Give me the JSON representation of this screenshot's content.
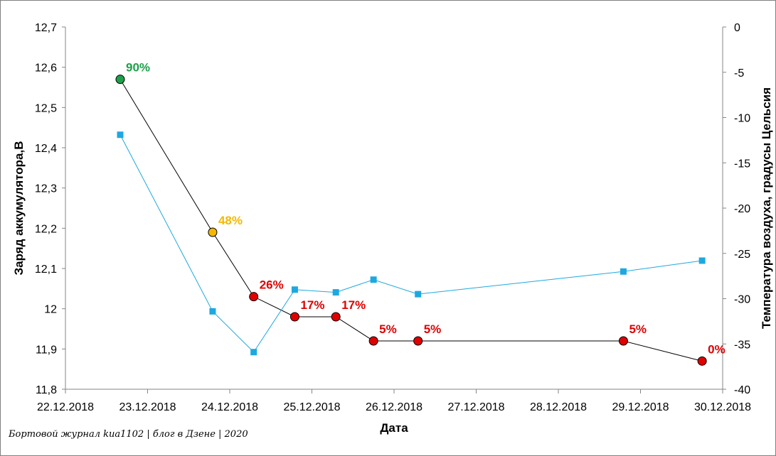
{
  "footer_text": "Бортовой журнал kиа1102 | блог в Дзене | 2020",
  "chart_data": {
    "type": "line",
    "title": "",
    "xlabel": "Дата",
    "ylabel_left": "Заряд аккумулятора,В",
    "ylabel_right": "Температура воздуха, градусы Цельсия",
    "x_axis": {
      "type": "date",
      "min": "22.12.2018",
      "max": "30.12.2018",
      "tick_labels": [
        "22.12.2018",
        "23.12.2018",
        "24.12.2018",
        "25.12.2018",
        "26.12.2018",
        "27.12.2018",
        "28.12.2018",
        "29.12.2018",
        "30.12.2018"
      ]
    },
    "y_left": {
      "min": 11.8,
      "max": 12.7,
      "step": 0.1,
      "tick_labels": [
        "11,8",
        "11,9",
        "12",
        "12,1",
        "12,2",
        "12,3",
        "12,4",
        "12,5",
        "12,6",
        "12,7"
      ]
    },
    "y_right": {
      "min": -40,
      "max": 0,
      "step": 5,
      "tick_labels": [
        "-40",
        "-35",
        "-30",
        "-25",
        "-20",
        "-15",
        "-10",
        "-5",
        "0"
      ]
    },
    "series": [
      {
        "axis": "left",
        "color": "#000000",
        "marker": "circle",
        "points": [
          {
            "x": "22.12.2018 16:00",
            "y": 12.57,
            "label": "90%",
            "color": "#1ea04a"
          },
          {
            "x": "23.12.2018 19:00",
            "y": 12.19,
            "label": "48%",
            "color": "#f5b800"
          },
          {
            "x": "24.12.2018 07:00",
            "y": 12.03,
            "label": "26%",
            "color": "#e00000"
          },
          {
            "x": "24.12.2018 19:00",
            "y": 11.98,
            "label": "17%",
            "color": "#e00000"
          },
          {
            "x": "25.12.2018 07:00",
            "y": 11.98,
            "label": "17%",
            "color": "#e00000"
          },
          {
            "x": "25.12.2018 18:00",
            "y": 11.92,
            "label": "5%",
            "color": "#e00000"
          },
          {
            "x": "26.12.2018 07:00",
            "y": 11.92,
            "label": "5%",
            "color": "#e00000"
          },
          {
            "x": "28.12.2018 19:00",
            "y": 11.92,
            "label": "5%",
            "color": "#e00000"
          },
          {
            "x": "29.12.2018 18:00",
            "y": 11.87,
            "label": "0%",
            "color": "#e00000"
          }
        ]
      },
      {
        "axis": "right",
        "color": "#1ea8e0",
        "marker": "square",
        "points": [
          {
            "x": "22.12.2018 16:00",
            "y": -11.9
          },
          {
            "x": "23.12.2018 19:00",
            "y": -31.4
          },
          {
            "x": "24.12.2018 07:00",
            "y": -35.9
          },
          {
            "x": "24.12.2018 19:00",
            "y": -29.0
          },
          {
            "x": "25.12.2018 07:00",
            "y": -29.3
          },
          {
            "x": "25.12.2018 18:00",
            "y": -27.9
          },
          {
            "x": "26.12.2018 07:00",
            "y": -29.5
          },
          {
            "x": "28.12.2018 19:00",
            "y": -27.0
          },
          {
            "x": "29.12.2018 18:00",
            "y": -25.8
          }
        ]
      }
    ]
  }
}
